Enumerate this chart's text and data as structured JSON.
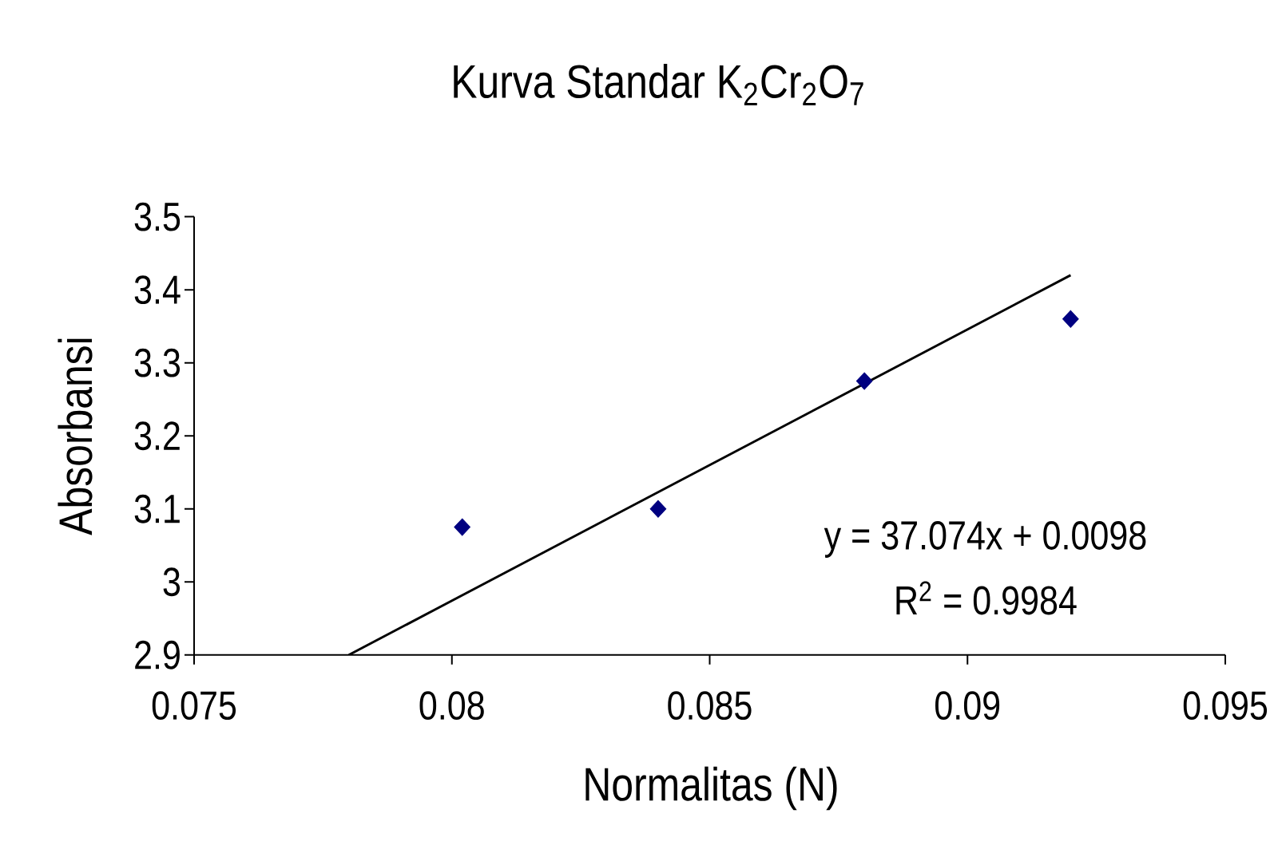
{
  "chart_data": {
    "type": "scatter",
    "title": "Kurva Standar K$_{2}$Cr$_{2}$O$_{7}$",
    "xlabel": "Normalitas (N)",
    "ylabel": "Absorbansi",
    "series": [
      {
        "color": "#000080",
        "marker": "diamond",
        "x": [
          0.0802,
          0.084,
          0.088,
          0.092
        ],
        "values": [
          3.075,
          3.1,
          3.275,
          3.36
        ]
      },
      {
        "type": "line",
        "color": "#000000",
        "marker": "none",
        "x": [
          0.078,
          0.092
        ],
        "values": [
          2.9,
          3.42
        ]
      }
    ],
    "xlim": [
      0.075,
      0.095
    ],
    "xticks": [
      0.075,
      0.08,
      0.085,
      0.09,
      0.095
    ],
    "ylim": [
      2.9,
      3.5
    ],
    "yticks": [
      2.9,
      3,
      3.1,
      3.2,
      3.3,
      3.4,
      3.5
    ],
    "annotations": [
      "y = 37.074x + 0.0098",
      "R$^{2}$ = 0.9984"
    ]
  }
}
